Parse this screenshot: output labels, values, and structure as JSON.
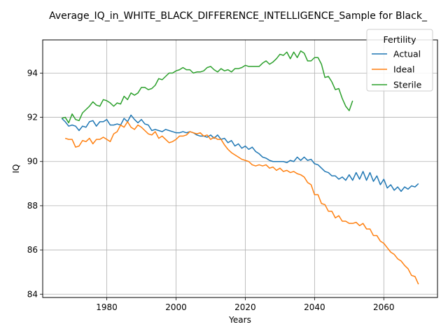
{
  "chart_data": {
    "type": "line",
    "title": "Average_IQ_in_WHITE_BLACK_DIFFERENCE_INTELLIGENCE_Sample for Black_",
    "xlabel": "Years",
    "ylabel": "IQ",
    "xlim": [
      1961.5,
      2075.5
    ],
    "ylim": [
      83.85,
      95.5
    ],
    "xticks": [
      1980,
      2000,
      2020,
      2040,
      2060
    ],
    "yticks": [
      84,
      86,
      88,
      90,
      92,
      94
    ],
    "grid": true,
    "legend": {
      "title": "Fertility",
      "position": "top-right"
    },
    "series": [
      {
        "name": "Actual",
        "color": "#1f77b4",
        "x": [
          1967,
          1968,
          1969,
          1970,
          1971,
          1972,
          1973,
          1974,
          1975,
          1976,
          1977,
          1978,
          1979,
          1980,
          1981,
          1982,
          1983,
          1984,
          1985,
          1986,
          1987,
          1988,
          1989,
          1990,
          1991,
          1992,
          1993,
          1994,
          1995,
          1996,
          1997,
          1998,
          1999,
          2000,
          2001,
          2002,
          2003,
          2004,
          2005,
          2006,
          2007,
          2008,
          2009,
          2010,
          2011,
          2012,
          2013,
          2014,
          2015,
          2016,
          2017,
          2018,
          2019,
          2020,
          2021,
          2022,
          2023,
          2024,
          2025,
          2026,
          2027,
          2028,
          2029,
          2030,
          2031,
          2032,
          2033,
          2034,
          2035,
          2036,
          2037,
          2038,
          2039,
          2040,
          2041,
          2042,
          2043,
          2044,
          2045,
          2046,
          2047,
          2048,
          2049,
          2050,
          2051,
          2052,
          2053,
          2054,
          2055,
          2056,
          2057,
          2058,
          2059,
          2060,
          2061,
          2062,
          2063,
          2064,
          2065,
          2066,
          2067,
          2068,
          2069,
          2070
        ],
        "values": [
          91.95,
          91.8,
          91.6,
          91.65,
          91.6,
          91.4,
          91.6,
          91.55,
          91.8,
          91.85,
          91.6,
          91.8,
          91.8,
          91.9,
          91.65,
          91.65,
          91.7,
          91.65,
          91.95,
          91.8,
          92.1,
          91.9,
          91.75,
          91.9,
          91.7,
          91.65,
          91.4,
          91.45,
          91.4,
          91.35,
          91.45,
          91.4,
          91.35,
          91.3,
          91.3,
          91.35,
          91.3,
          91.35,
          91.3,
          91.2,
          91.15,
          91.15,
          91.1,
          91.2,
          91.05,
          91.2,
          91.0,
          91.05,
          90.85,
          90.95,
          90.7,
          90.8,
          90.6,
          90.7,
          90.55,
          90.65,
          90.45,
          90.35,
          90.2,
          90.15,
          90.05,
          90.0,
          90.0,
          90.0,
          90.0,
          89.95,
          90.05,
          90.0,
          90.2,
          90.05,
          90.2,
          90.05,
          90.1,
          89.9,
          89.85,
          89.7,
          89.55,
          89.5,
          89.35,
          89.35,
          89.2,
          89.3,
          89.15,
          89.4,
          89.15,
          89.5,
          89.2,
          89.55,
          89.15,
          89.5,
          89.1,
          89.35,
          88.95,
          89.2,
          88.8,
          88.95,
          88.7,
          88.85,
          88.65,
          88.85,
          88.75,
          88.9,
          88.85,
          89.0
        ]
      },
      {
        "name": "Ideal",
        "color": "#ff7f0e",
        "x": [
          1968,
          1969,
          1970,
          1971,
          1972,
          1973,
          1974,
          1975,
          1976,
          1977,
          1978,
          1979,
          1980,
          1981,
          1982,
          1983,
          1984,
          1985,
          1986,
          1987,
          1988,
          1989,
          1990,
          1991,
          1992,
          1993,
          1994,
          1995,
          1996,
          1997,
          1998,
          1999,
          2000,
          2001,
          2002,
          2003,
          2004,
          2005,
          2006,
          2007,
          2008,
          2009,
          2010,
          2011,
          2012,
          2013,
          2014,
          2015,
          2016,
          2017,
          2018,
          2019,
          2020,
          2021,
          2022,
          2023,
          2024,
          2025,
          2026,
          2027,
          2028,
          2029,
          2030,
          2031,
          2032,
          2033,
          2034,
          2035,
          2036,
          2037,
          2038,
          2039,
          2040,
          2041,
          2042,
          2043,
          2044,
          2045,
          2046,
          2047,
          2048,
          2049,
          2050,
          2051,
          2052,
          2053,
          2054,
          2055,
          2056,
          2057,
          2058,
          2059,
          2060,
          2061,
          2062,
          2063,
          2064,
          2065,
          2066,
          2067,
          2068,
          2069,
          2070
        ],
        "values": [
          91.05,
          91.0,
          91.0,
          90.65,
          90.7,
          90.95,
          90.9,
          91.05,
          90.8,
          91.0,
          91.0,
          91.1,
          91.0,
          90.9,
          91.25,
          91.35,
          91.65,
          91.55,
          91.8,
          91.55,
          91.45,
          91.65,
          91.55,
          91.4,
          91.25,
          91.2,
          91.35,
          91.05,
          91.15,
          91.0,
          90.85,
          90.9,
          91.0,
          91.15,
          91.15,
          91.2,
          91.35,
          91.3,
          91.25,
          91.3,
          91.15,
          91.2,
          91.0,
          91.1,
          91.0,
          91.0,
          90.75,
          90.55,
          90.4,
          90.3,
          90.2,
          90.1,
          90.05,
          90.0,
          89.85,
          89.8,
          89.85,
          89.8,
          89.85,
          89.7,
          89.75,
          89.6,
          89.7,
          89.55,
          89.6,
          89.5,
          89.55,
          89.45,
          89.4,
          89.3,
          89.05,
          88.95,
          88.5,
          88.5,
          88.1,
          88.05,
          87.75,
          87.75,
          87.45,
          87.55,
          87.3,
          87.3,
          87.2,
          87.2,
          87.25,
          87.1,
          87.2,
          86.95,
          86.95,
          86.65,
          86.65,
          86.4,
          86.3,
          86.1,
          85.9,
          85.8,
          85.6,
          85.5,
          85.3,
          85.15,
          84.85,
          84.8,
          84.45
        ]
      },
      {
        "name": "Sterile",
        "color": "#2ca02c",
        "x": [
          1967,
          1968,
          1969,
          1970,
          1971,
          1972,
          1973,
          1974,
          1975,
          1976,
          1977,
          1978,
          1979,
          1980,
          1981,
          1982,
          1983,
          1984,
          1985,
          1986,
          1987,
          1988,
          1989,
          1990,
          1991,
          1992,
          1993,
          1994,
          1995,
          1996,
          1997,
          1998,
          1999,
          2000,
          2001,
          2002,
          2003,
          2004,
          2005,
          2006,
          2007,
          2008,
          2009,
          2010,
          2011,
          2012,
          2013,
          2014,
          2015,
          2016,
          2017,
          2018,
          2019,
          2020,
          2021,
          2022,
          2023,
          2024,
          2025,
          2026,
          2027,
          2028,
          2029,
          2030,
          2031,
          2032,
          2033,
          2034,
          2035,
          2036,
          2037,
          2038,
          2039,
          2040,
          2041,
          2042,
          2043,
          2044,
          2045,
          2046,
          2047,
          2048,
          2049,
          2050,
          2051
        ],
        "values": [
          91.95,
          92.0,
          91.75,
          92.15,
          91.9,
          91.85,
          92.2,
          92.35,
          92.5,
          92.7,
          92.55,
          92.5,
          92.8,
          92.75,
          92.65,
          92.5,
          92.65,
          92.6,
          92.95,
          92.8,
          93.1,
          93.0,
          93.1,
          93.35,
          93.35,
          93.25,
          93.3,
          93.45,
          93.75,
          93.7,
          93.85,
          94.0,
          94.0,
          94.1,
          94.15,
          94.25,
          94.15,
          94.15,
          94.0,
          94.05,
          94.05,
          94.1,
          94.25,
          94.3,
          94.15,
          94.05,
          94.2,
          94.1,
          94.15,
          94.05,
          94.2,
          94.2,
          94.25,
          94.35,
          94.3,
          94.3,
          94.3,
          94.3,
          94.45,
          94.55,
          94.4,
          94.5,
          94.65,
          94.85,
          94.8,
          94.95,
          94.65,
          94.95,
          94.7,
          95.0,
          94.9,
          94.55,
          94.55,
          94.7,
          94.7,
          94.4,
          93.8,
          93.85,
          93.6,
          93.25,
          93.3,
          92.85,
          92.5,
          92.3,
          92.75
        ]
      }
    ]
  }
}
